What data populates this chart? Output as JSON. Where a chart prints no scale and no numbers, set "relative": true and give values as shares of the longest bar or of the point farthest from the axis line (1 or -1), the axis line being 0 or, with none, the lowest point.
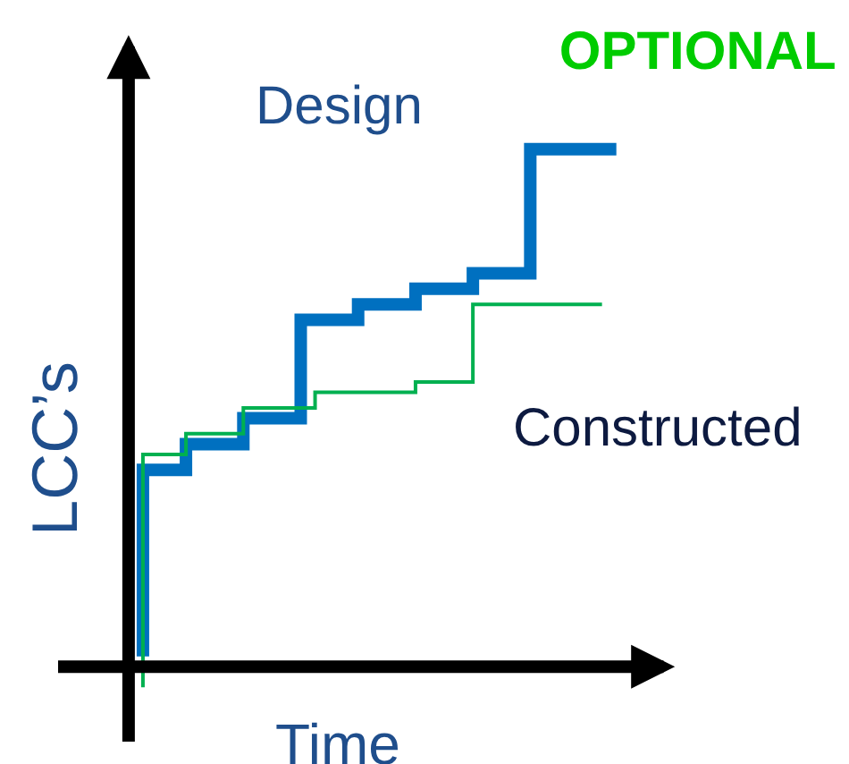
{
  "chart_data": {
    "type": "step",
    "title": "OPTIONAL",
    "xlabel": "Time",
    "ylabel": "LCC’s",
    "relative": true,
    "legend": false,
    "categories": [
      null,
      null,
      null,
      null,
      null,
      null,
      null,
      null,
      null,
      null,
      null,
      null,
      null,
      null,
      null,
      null,
      null,
      null,
      null,
      null,
      null,
      null,
      null,
      null,
      null,
      null,
      null,
      null,
      null,
      null,
      null,
      null,
      null,
      null,
      null
    ],
    "series": [
      {
        "name": "Design",
        "color": "#0070c0",
        "values": [
          null,
          0.02,
          0.38,
          0.38,
          0.38,
          0.43,
          0.43,
          0.43,
          0.43,
          0.48,
          0.48,
          0.48,
          0.48,
          0.67,
          0.67,
          0.67,
          0.67,
          0.7,
          0.7,
          0.7,
          0.7,
          0.73,
          0.73,
          0.73,
          0.73,
          0.76,
          0.76,
          0.76,
          0.76,
          1,
          1,
          1,
          1,
          1,
          1
        ]
      },
      {
        "name": "Constructed",
        "color": "#00b050",
        "values": [
          null,
          -0.04,
          0.41,
          0.41,
          0.41,
          0.45,
          0.45,
          0.45,
          0.45,
          0.5,
          0.5,
          0.5,
          0.5,
          0.5,
          0.53,
          0.53,
          0.53,
          0.53,
          0.53,
          0.53,
          0.53,
          0.55,
          0.55,
          0.55,
          0.55,
          0.7,
          0.7,
          0.7,
          0.7,
          0.7,
          0.7,
          0.7,
          0.7,
          0.7,
          null
        ]
      }
    ]
  }
}
